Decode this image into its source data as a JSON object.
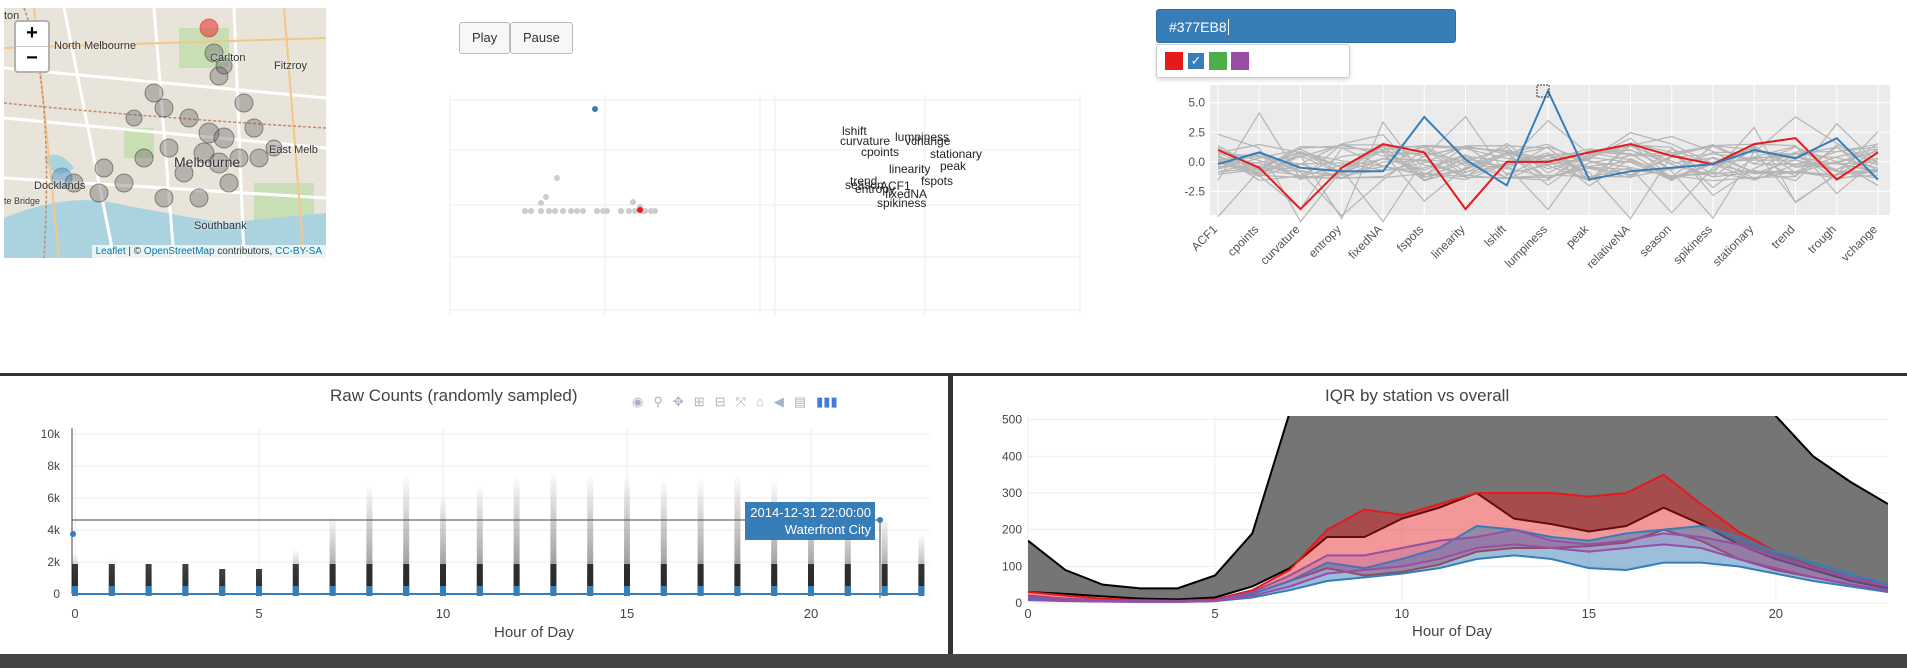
{
  "map": {
    "zoom_in": "+",
    "zoom_out": "−",
    "labels": {
      "north_melbourne": "North Melbourne",
      "carlton": "Carlton",
      "fitzroy": "Fitzroy",
      "melbourne": "Melbourne",
      "east_melbourne": "East Melb",
      "docklands": "Docklands",
      "southbank": "Southbank",
      "ton": "ton",
      "bridge": "te Bridge"
    },
    "attribution": {
      "leaflet": "Leaflet",
      "sep": " | © ",
      "osm": "OpenStreetMap",
      "contrib": " contributors, ",
      "license": "CC-BY-SA"
    }
  },
  "controls": {
    "play": "Play",
    "pause": "Pause"
  },
  "color_picker": {
    "value": "#377EB8",
    "swatches": [
      {
        "name": "red",
        "color": "#E41A1C",
        "selected": false
      },
      {
        "name": "blue",
        "color": "#377EB8",
        "selected": true
      },
      {
        "name": "green",
        "color": "#4DAF4A",
        "selected": false
      },
      {
        "name": "purple",
        "color": "#984EA3",
        "selected": false
      }
    ],
    "check": "✓"
  },
  "scatter_labels": [
    "lshift",
    "curvature",
    "lumpiness",
    "vchange",
    "cpoints",
    "stationary",
    "linearity",
    "peak",
    "trend",
    "season",
    "entropy",
    "ACF1",
    "fspots",
    "fixedNA",
    "spikiness"
  ],
  "parcoords": {
    "yticks": [
      "5.0",
      "2.5",
      "0.0",
      "-2.5"
    ],
    "axes": [
      "ACF1",
      "cpoints",
      "curvature",
      "entropy",
      "fixedNA",
      "fspots",
      "linearity",
      "lshift",
      "lumpiness",
      "peak",
      "relativeNA",
      "season",
      "spikiness",
      "stationary",
      "trend",
      "trough",
      "vchange"
    ]
  },
  "raw_counts": {
    "title": "Raw Counts (randomly sampled)",
    "xlabel": "Hour of Day",
    "yticks": [
      "10k",
      "8k",
      "6k",
      "4k",
      "2k",
      "0"
    ],
    "xticks": [
      "0",
      "5",
      "10",
      "15",
      "20"
    ],
    "tooltip_time": "2014-12-31 22:00:00",
    "tooltip_station": "Waterfront City",
    "modebar": [
      "camera-icon",
      "zoom-icon",
      "pan-icon",
      "zoom-in-icon",
      "zoom-out-icon",
      "autoscale-icon",
      "home-icon",
      "spike-icon",
      "compare-icon",
      "plotly-logo-icon"
    ]
  },
  "iqr": {
    "title": "IQR by station vs overall",
    "xlabel": "Hour of Day",
    "yticks": [
      "500",
      "400",
      "300",
      "200",
      "100",
      "0"
    ],
    "xticks": [
      "0",
      "5",
      "10",
      "15",
      "20"
    ]
  },
  "colors": {
    "blue": "#377EB8",
    "red": "#E41A1C",
    "grey": "#666666",
    "purple": "#984EA3"
  },
  "chart_data": [
    {
      "type": "line",
      "name": "parallel-coordinates",
      "categories": [
        "ACF1",
        "cpoints",
        "curvature",
        "entropy",
        "fixedNA",
        "fspots",
        "linearity",
        "lshift",
        "lumpiness",
        "peak",
        "relativeNA",
        "season",
        "spikiness",
        "stationary",
        "trend",
        "trough",
        "vchange"
      ],
      "ylim": [
        -4.5,
        6.5
      ],
      "series": [
        {
          "color": "#E41A1C",
          "values": [
            1.0,
            -0.5,
            -4.0,
            -0.5,
            1.5,
            0.8,
            -4.0,
            0.0,
            0.0,
            0.8,
            1.5,
            0.5,
            -0.2,
            1.5,
            2.0,
            -1.5,
            0.8
          ]
        },
        {
          "color": "#377EB8",
          "values": [
            -0.2,
            0.8,
            -0.5,
            -0.8,
            -0.8,
            3.8,
            0.2,
            -2.0,
            6.0,
            -1.5,
            -0.8,
            -0.5,
            -0.2,
            1.0,
            0.3,
            2.0,
            -1.5
          ]
        }
      ]
    },
    {
      "type": "line",
      "name": "iqr-overall-vs-station",
      "xlabel": "Hour of Day",
      "x": [
        0,
        1,
        2,
        3,
        4,
        5,
        6,
        7,
        8,
        9,
        10,
        11,
        12,
        13,
        14,
        15,
        16,
        17,
        18,
        19,
        20,
        21,
        22,
        23
      ],
      "ylim": [
        0,
        510
      ],
      "series": [
        {
          "color": "#666666",
          "lower": [
            30,
            25,
            18,
            12,
            10,
            15,
            45,
            95,
            180,
            180,
            230,
            260,
            300,
            230,
            215,
            195,
            210,
            260,
            215,
            160,
            120,
            90,
            60,
            40
          ],
          "upper": [
            170,
            90,
            50,
            40,
            40,
            75,
            190,
            520,
            560,
            610,
            640,
            690,
            700,
            640,
            580,
            560,
            600,
            690,
            620,
            600,
            510,
            400,
            330,
            270
          ]
        },
        {
          "color": "#E41A1C",
          "lower": [
            20,
            12,
            8,
            5,
            4,
            8,
            25,
            60,
            95,
            75,
            85,
            105,
            140,
            150,
            150,
            155,
            165,
            200,
            170,
            120,
            90,
            70,
            50,
            30
          ],
          "upper": [
            30,
            20,
            12,
            8,
            6,
            10,
            35,
            90,
            200,
            255,
            240,
            270,
            300,
            300,
            300,
            290,
            300,
            350,
            270,
            195,
            140,
            100,
            70,
            50
          ]
        }
      ]
    }
  ]
}
